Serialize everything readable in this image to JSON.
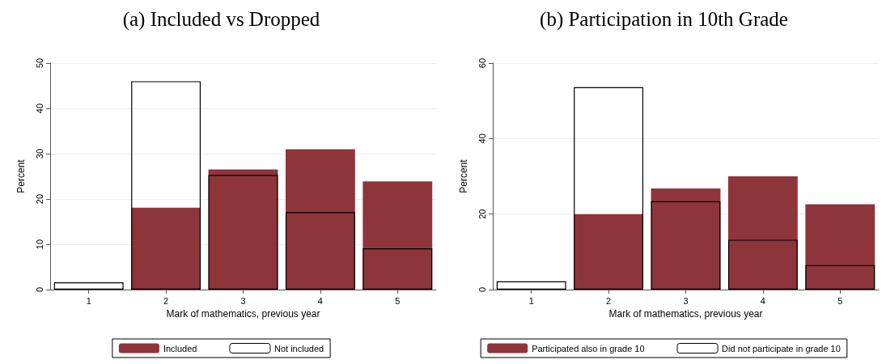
{
  "chart_data": [
    {
      "type": "bar",
      "title": "(a) Included vs Dropped",
      "xlabel": "Mark of mathematics, previous year",
      "ylabel": "Percent",
      "categories": [
        "1",
        "2",
        "3",
        "4",
        "5"
      ],
      "series": [
        {
          "name": "Included",
          "color": "#8e353c",
          "values": [
            0,
            18.1,
            26.5,
            31.0,
            23.9
          ]
        },
        {
          "name": "Not included",
          "color": "#000000",
          "values": [
            1.6,
            46.0,
            25.3,
            17.1,
            9.1
          ]
        }
      ],
      "ylim": [
        0,
        50
      ],
      "yticks": [
        0,
        10,
        20,
        30,
        40,
        50
      ],
      "grid": "y",
      "legend": "bottom"
    },
    {
      "type": "bar",
      "title": "(b) Participation in 10th Grade",
      "xlabel": "Mark of mathematics, previous year",
      "ylabel": "Percent",
      "categories": [
        "1",
        "2",
        "3",
        "4",
        "5"
      ],
      "series": [
        {
          "name": "Participated also in grade 10",
          "color": "#8e353c",
          "values": [
            0,
            20.0,
            26.8,
            30.0,
            22.6
          ]
        },
        {
          "name": "Did not participate in grade 10",
          "color": "#000000",
          "values": [
            2.2,
            53.6,
            23.4,
            13.2,
            6.5
          ]
        }
      ],
      "ylim": [
        0,
        60
      ],
      "yticks": [
        0,
        20,
        40,
        60
      ],
      "grid": "y",
      "legend": "bottom"
    }
  ]
}
